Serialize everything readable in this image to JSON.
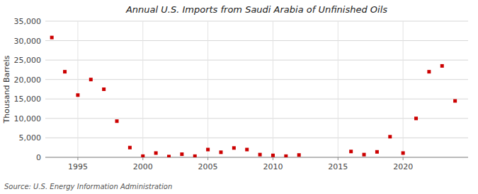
{
  "chart_data": {
    "type": "scatter",
    "title": "Annual U.S. Imports from Saudi Arabia of Unfinished Oils",
    "y_label": "Thousand Barrels",
    "annotations": [
      "Source: U.S. Energy Information Administration"
    ],
    "x": [
      1993,
      1994,
      1995,
      1996,
      1997,
      1998,
      1999,
      2000,
      2001,
      2002,
      2003,
      2004,
      2005,
      2006,
      2007,
      2008,
      2009,
      2010,
      2011,
      2012,
      2016,
      2017,
      2018,
      2019,
      2020,
      2021,
      2022,
      2023,
      2024
    ],
    "values": [
      30800,
      22000,
      16000,
      20000,
      17500,
      9300,
      2500,
      300,
      1100,
      200,
      800,
      300,
      2000,
      1300,
      2400,
      2000,
      700,
      500,
      300,
      600,
      1500,
      700,
      1400,
      5300,
      1100,
      10000,
      22000,
      23500,
      14500
    ],
    "color": "#cc0000",
    "marker": "square",
    "xlim": [
      1992.5,
      2025
    ],
    "xticks": [
      1995,
      2000,
      2005,
      2010,
      2015,
      2020
    ],
    "ylim": [
      0,
      35000
    ],
    "yticks": [
      0,
      {
        "value": 5000,
        "label": "5,000"
      },
      {
        "value": 10000,
        "label": "10,000"
      },
      {
        "value": 15000,
        "label": "15,000"
      },
      {
        "value": 20000,
        "label": "20,000"
      },
      {
        "value": 25000,
        "label": "25,000"
      },
      {
        "value": 30000,
        "label": "30,000"
      },
      {
        "value": 35000,
        "label": "35,000"
      }
    ],
    "grid": true
  }
}
